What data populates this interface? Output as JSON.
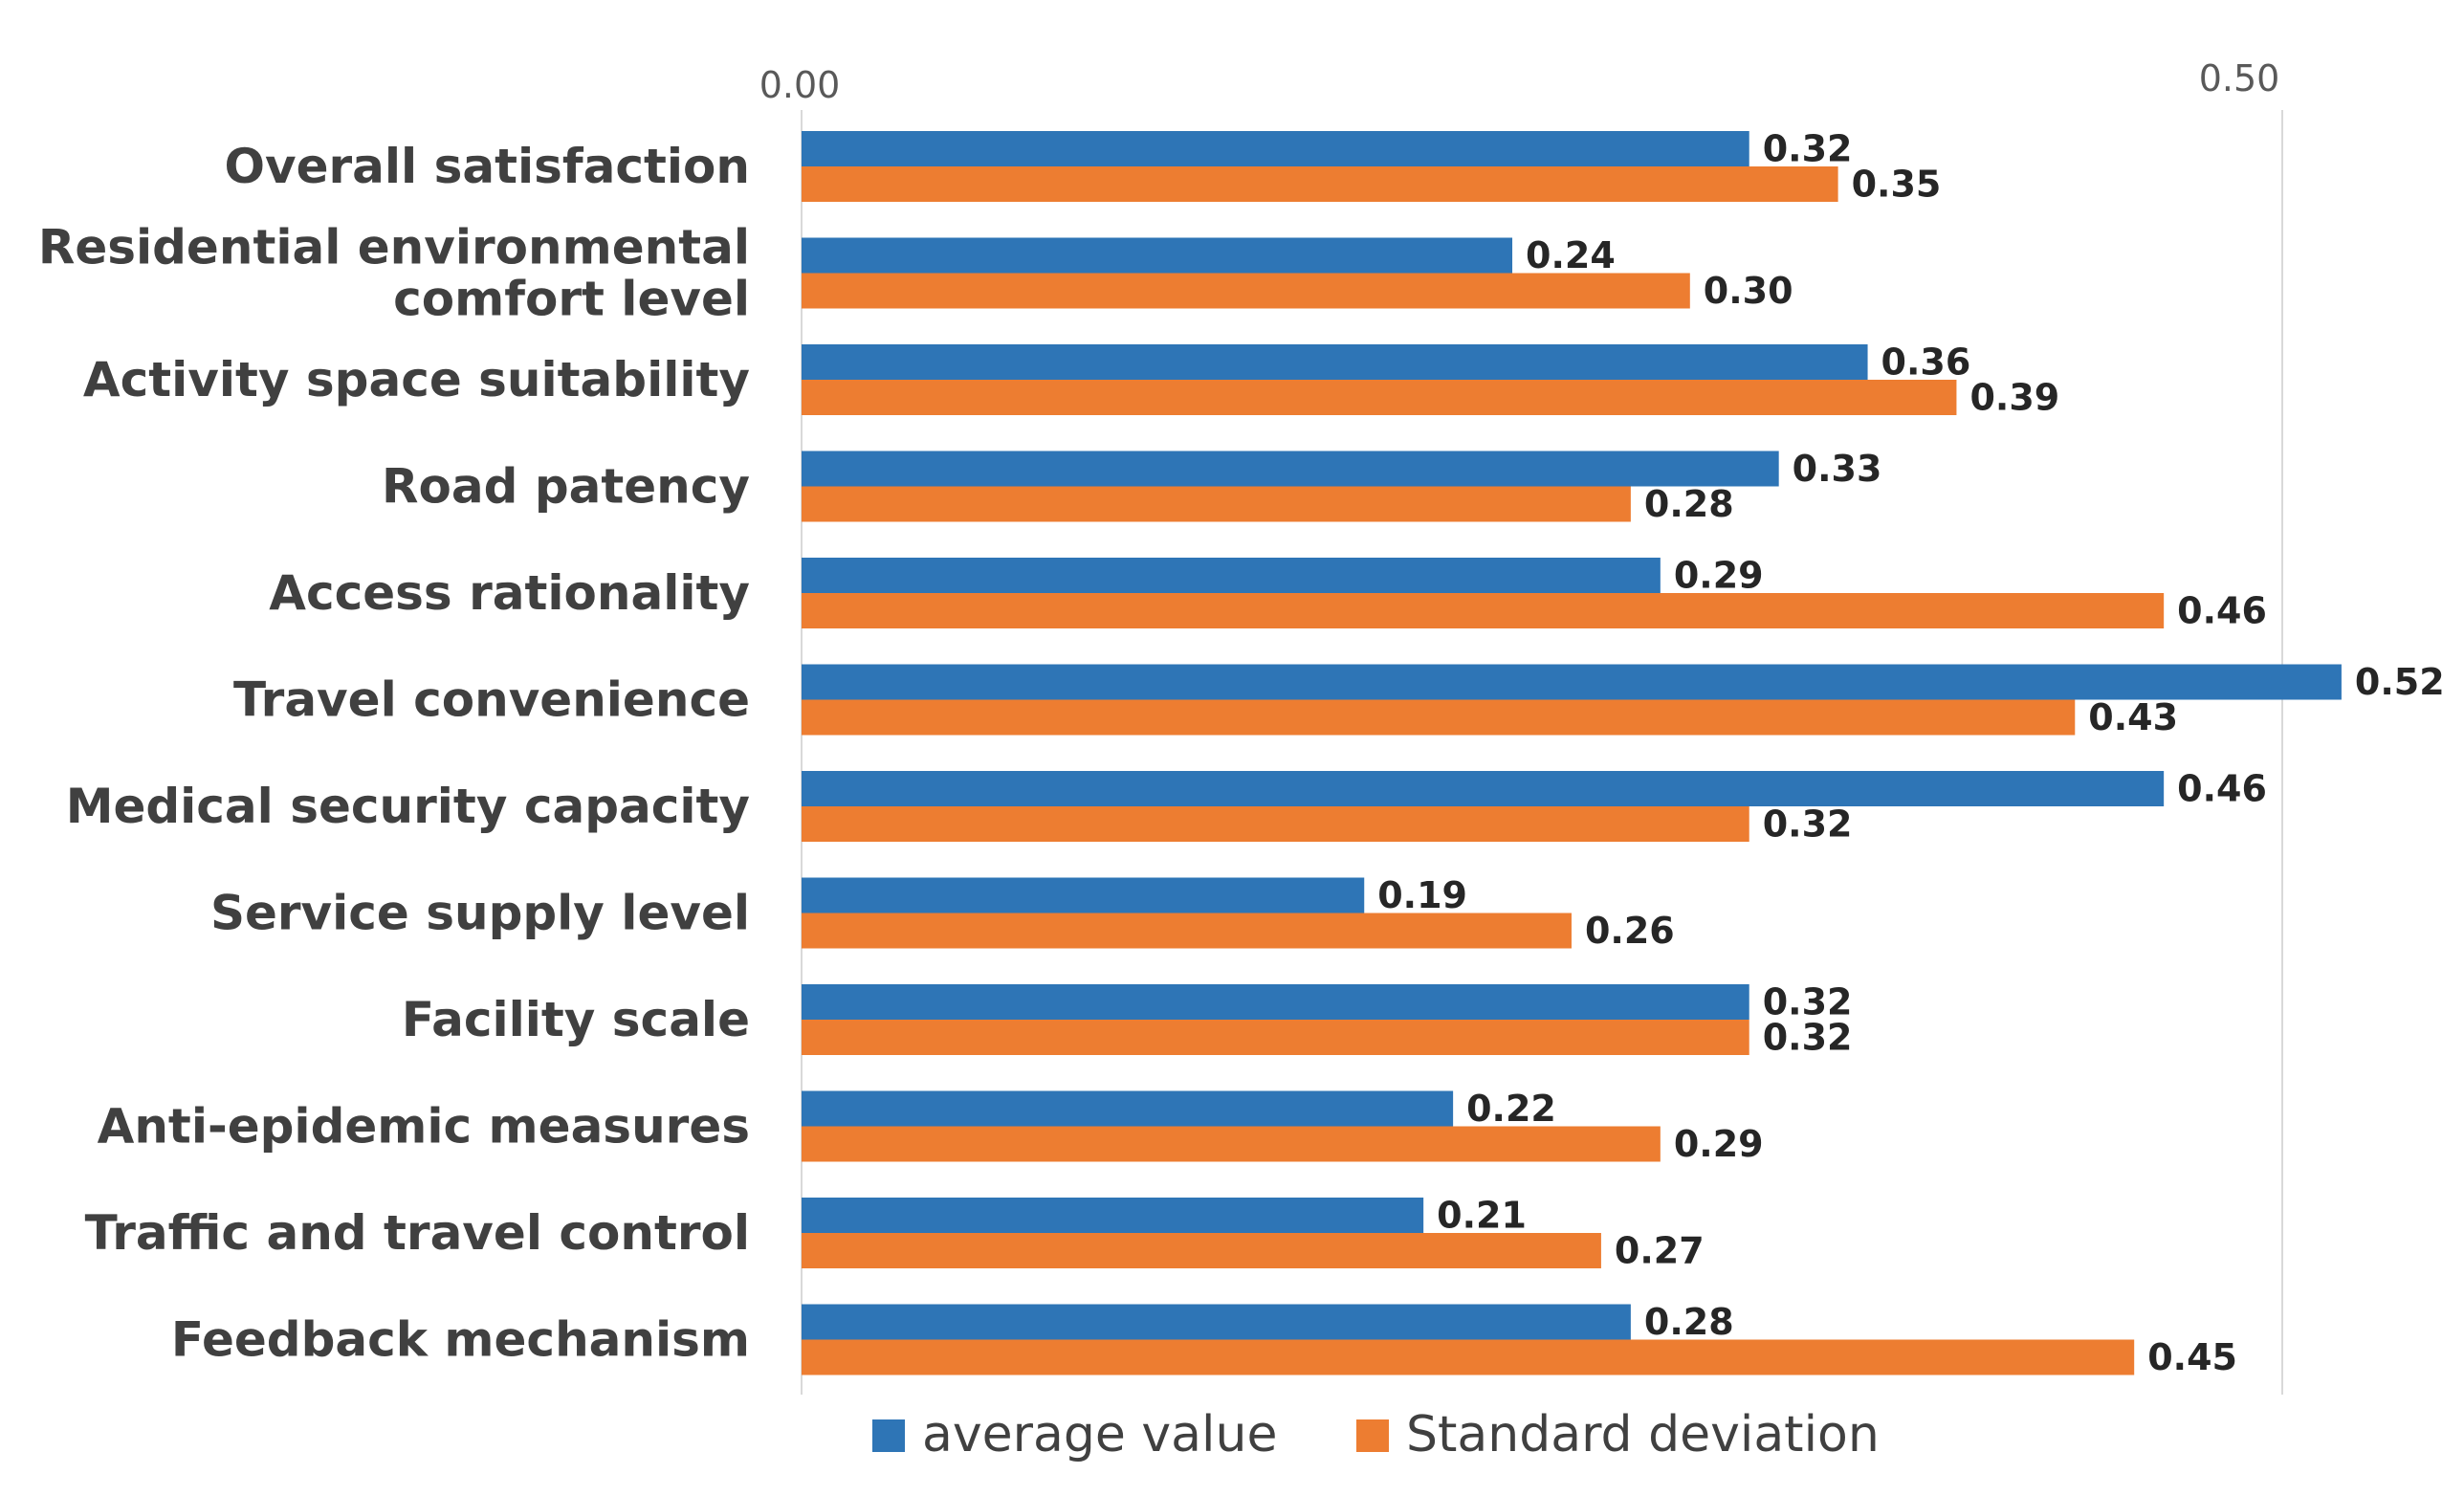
{
  "chart_data": {
    "type": "bar",
    "orientation": "horizontal",
    "title": "",
    "xlabel": "",
    "ylabel": "",
    "xlim": [
      0,
      0.5
    ],
    "ticks": [
      "0.00",
      "0.50"
    ],
    "tick_values": [
      0,
      0.5
    ],
    "grid": true,
    "legend_position": "bottom",
    "categories": [
      [
        "Overall satisfaction"
      ],
      [
        "Residential environmental",
        "comfort level"
      ],
      [
        "Activity space suitability"
      ],
      [
        "Road patency"
      ],
      [
        "Access rationality"
      ],
      [
        "Travel convenience"
      ],
      [
        "Medical security capacity"
      ],
      [
        "Service supply level"
      ],
      [
        "Facility scale"
      ],
      [
        "Anti-epidemic measures"
      ],
      [
        "Traffic and travel control"
      ],
      [
        "Feedback mechanism"
      ]
    ],
    "series": [
      {
        "name": "average value",
        "color": "#2E75B6",
        "values": [
          0.32,
          0.24,
          0.36,
          0.33,
          0.29,
          0.52,
          0.46,
          0.19,
          0.32,
          0.22,
          0.21,
          0.28
        ],
        "labels": [
          "0.32",
          "0.24",
          "0.36",
          "0.33",
          "0.29",
          "0.52",
          "0.46",
          "0.19",
          "0.32",
          "0.22",
          "0.21",
          "0.28"
        ]
      },
      {
        "name": "Standard deviation",
        "color": "#ED7D31",
        "values": [
          0.35,
          0.3,
          0.39,
          0.28,
          0.46,
          0.43,
          0.32,
          0.26,
          0.32,
          0.29,
          0.27,
          0.45
        ],
        "labels": [
          "0.35",
          "0.30",
          "0.39",
          "0.28",
          "0.46",
          "0.43",
          "0.32",
          "0.26",
          "0.32",
          "0.29",
          "0.27",
          "0.45"
        ]
      }
    ]
  }
}
